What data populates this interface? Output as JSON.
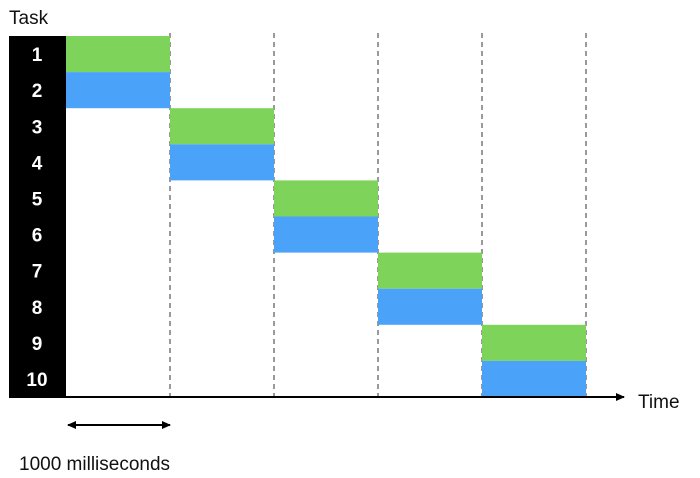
{
  "diagram": {
    "y_axis_label": "Task",
    "x_axis_label": "Time",
    "interval_label": "1000 milliseconds",
    "tasks": [
      "1",
      "2",
      "3",
      "4",
      "5",
      "6",
      "7",
      "8",
      "9",
      "10"
    ],
    "interval_ms": 1000,
    "schedule": [
      {
        "task": "1",
        "interval": 0,
        "color": "#7ED35A"
      },
      {
        "task": "2",
        "interval": 0,
        "color": "#4AA3F8"
      },
      {
        "task": "3",
        "interval": 1,
        "color": "#7ED35A"
      },
      {
        "task": "4",
        "interval": 1,
        "color": "#4AA3F8"
      },
      {
        "task": "5",
        "interval": 2,
        "color": "#7ED35A"
      },
      {
        "task": "6",
        "interval": 2,
        "color": "#4AA3F8"
      },
      {
        "task": "7",
        "interval": 3,
        "color": "#7ED35A"
      },
      {
        "task": "8",
        "interval": 3,
        "color": "#4AA3F8"
      },
      {
        "task": "9",
        "interval": 4,
        "color": "#7ED35A"
      },
      {
        "task": "10",
        "interval": 4,
        "color": "#4AA3F8"
      }
    ],
    "colors": {
      "green": "#7ED35A",
      "blue": "#4AA3F8",
      "task_column": "#000000",
      "axis": "#000000"
    }
  }
}
